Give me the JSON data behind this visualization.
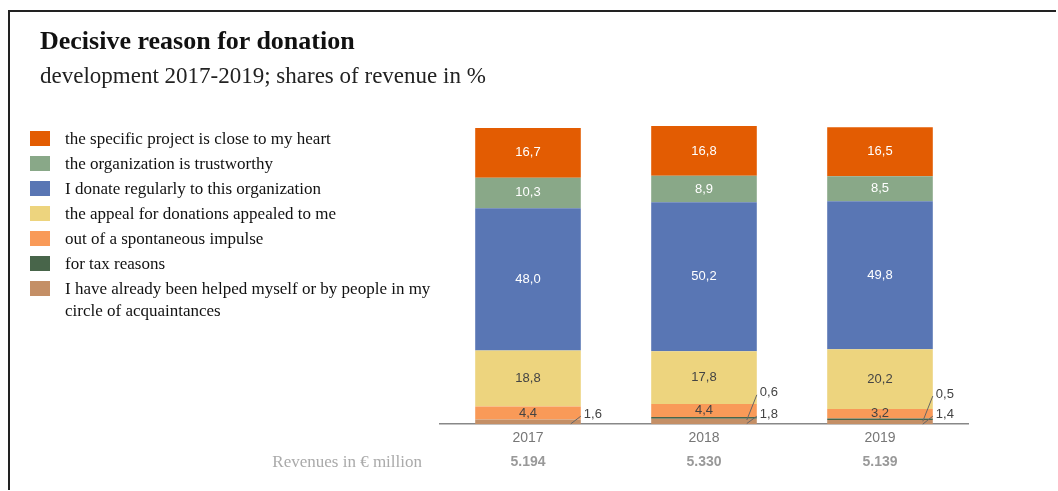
{
  "chart_data": {
    "type": "bar",
    "title": "Decisive reason for donation",
    "subtitle": "development 2017-2019; shares of revenue in %",
    "categories": [
      "2017",
      "2018",
      "2019"
    ],
    "stacked": true,
    "legend": "left",
    "tick_labels": "x",
    "grid": false,
    "series": [
      {
        "name": "I have already been helped myself or by people in my circle of acquaintances",
        "color": "#c48f66",
        "values": [
          1.6,
          1.8,
          1.4
        ],
        "value_labels": [
          "1,6",
          "1,8",
          "1,4"
        ]
      },
      {
        "name": "for tax reasons",
        "color": "#48654a",
        "values": [
          null,
          0.6,
          0.5
        ],
        "value_labels": [
          null,
          "0,6",
          "0,5"
        ]
      },
      {
        "name": "out of a spontaneous impulse",
        "color": "#f99a58",
        "values": [
          4.4,
          4.4,
          3.2
        ],
        "value_labels": [
          "4,4",
          "4,4",
          "3,2"
        ]
      },
      {
        "name": "the appeal for donations appealed to me",
        "color": "#edd47e",
        "values": [
          18.8,
          17.8,
          20.2
        ],
        "value_labels": [
          "18,8",
          "17,8",
          "20,2"
        ]
      },
      {
        "name": "I donate regularly to this organization",
        "color": "#5976b4",
        "values": [
          48.0,
          50.2,
          49.8
        ],
        "value_labels": [
          "48,0",
          "50,2",
          "49,8"
        ]
      },
      {
        "name": "the organization is trustworthy",
        "color": "#89a888",
        "values": [
          10.3,
          8.9,
          8.5
        ],
        "value_labels": [
          "10,3",
          "8,9",
          "8,5"
        ]
      },
      {
        "name": "the specific project is close to my heart",
        "color": "#e35c02",
        "values": [
          16.7,
          16.8,
          16.5
        ],
        "value_labels": [
          "16,7",
          "16,8",
          "16,5"
        ]
      }
    ],
    "annotations": [
      "Revenues in € million",
      "5.194",
      "5.330",
      "5.139"
    ]
  }
}
